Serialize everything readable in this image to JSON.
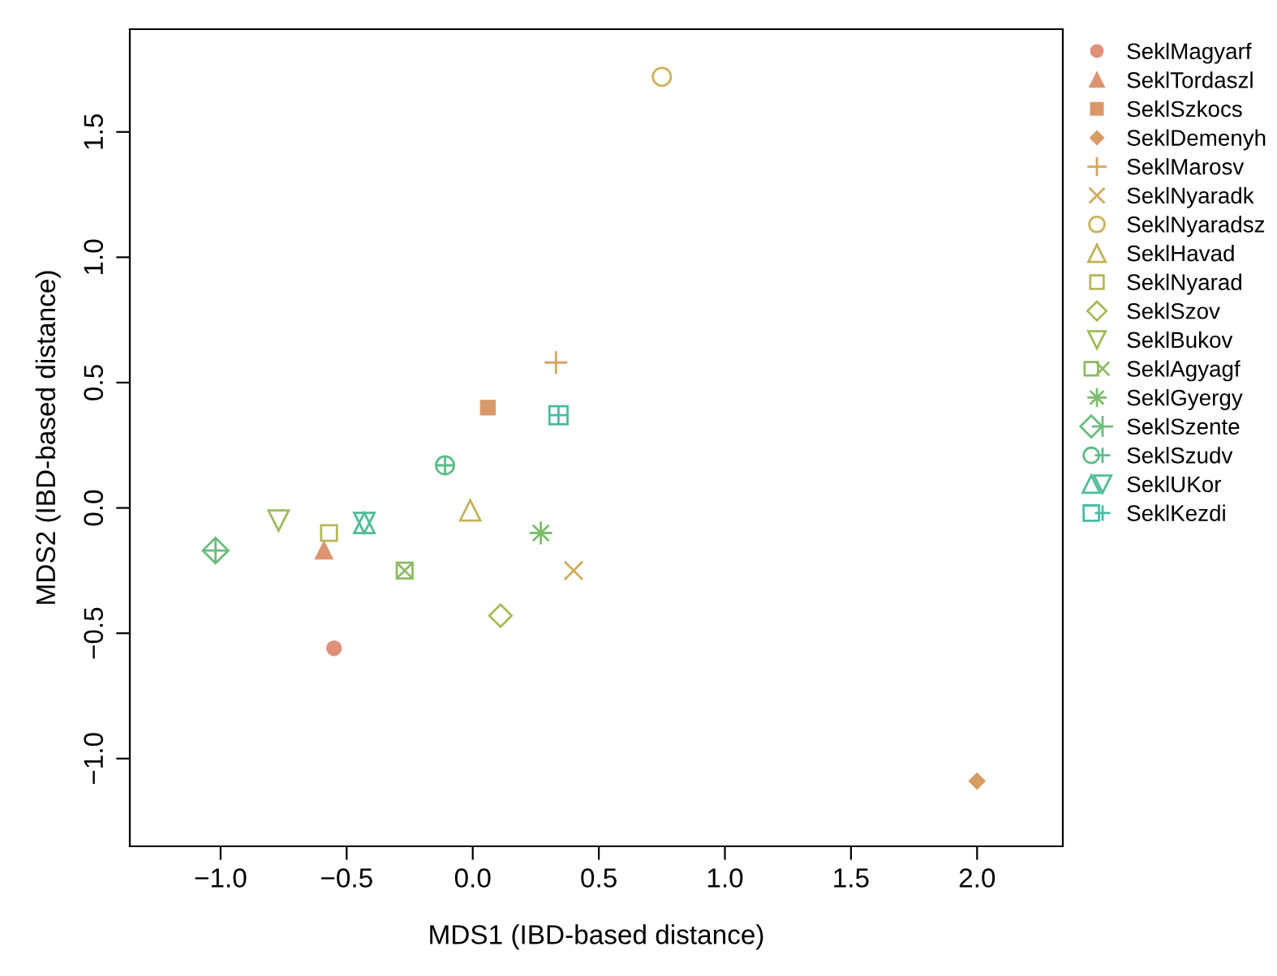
{
  "chart_data": {
    "type": "scatter",
    "xlabel": "MDS1 (IBD-based distance)",
    "ylabel": "MDS2 (IBD-based distance)",
    "xlim": [
      -1.36,
      2.34
    ],
    "ylim": [
      -1.35,
      1.91
    ],
    "xticks": [
      {
        "value": -1.0,
        "label": "−1.0"
      },
      {
        "value": -0.5,
        "label": "−0.5"
      },
      {
        "value": 0.0,
        "label": "0.0"
      },
      {
        "value": 0.5,
        "label": "0.5"
      },
      {
        "value": 1.0,
        "label": "1.0"
      },
      {
        "value": 1.5,
        "label": "1.5"
      },
      {
        "value": 2.0,
        "label": "2.0"
      }
    ],
    "yticks": [
      {
        "value": -1.0,
        "label": "−1.0"
      },
      {
        "value": -0.5,
        "label": "−0.5"
      },
      {
        "value": 0.0,
        "label": "0.0"
      },
      {
        "value": 0.5,
        "label": "0.5"
      },
      {
        "value": 1.0,
        "label": "1.0"
      },
      {
        "value": 1.5,
        "label": "1.5"
      }
    ],
    "grid": false,
    "legend": "top right",
    "series": [
      {
        "name": "SeklMagyarf",
        "color": "#e0917a",
        "marker": "circle",
        "x": [
          -0.55
        ],
        "values": [
          -0.56
        ]
      },
      {
        "name": "SeklTordaszl",
        "color": "#de9472",
        "marker": "triangle_filled",
        "x": [
          -0.59
        ],
        "values": [
          -0.17
        ]
      },
      {
        "name": "SeklSzkocs",
        "color": "#d9986a",
        "marker": "square",
        "x": [
          0.06
        ],
        "values": [
          0.4
        ]
      },
      {
        "name": "SeklDemenyh",
        "color": "#d69c62",
        "marker": "diamond",
        "x": [
          2.0
        ],
        "values": [
          -1.09
        ]
      },
      {
        "name": "SeklMarosv",
        "color": "#d6a45c",
        "marker": "plus",
        "x": [
          0.33
        ],
        "values": [
          0.58
        ]
      },
      {
        "name": "SeklNyaradk",
        "color": "#d2aa5a",
        "marker": "x",
        "x": [
          0.4
        ],
        "values": [
          -0.25
        ]
      },
      {
        "name": "SeklNyaradsz",
        "color": "#ccb25a",
        "marker": "circle_open",
        "x": [
          0.75
        ],
        "values": [
          1.72
        ]
      },
      {
        "name": "SeklHavad",
        "color": "#c2b258",
        "marker": "triangle_open",
        "x": [
          -0.01
        ],
        "values": [
          -0.01
        ]
      },
      {
        "name": "SeklNyarad",
        "color": "#b6b85a",
        "marker": "square_open",
        "x": [
          -0.57
        ],
        "values": [
          -0.1
        ]
      },
      {
        "name": "SeklSzov",
        "color": "#a8ba58",
        "marker": "diamond_open",
        "x": [
          0.11
        ],
        "values": [
          -0.43
        ]
      },
      {
        "name": "SeklBukov",
        "color": "#9cbb5a",
        "marker": "triangle_down_open",
        "x": [
          -0.77
        ],
        "values": [
          -0.05
        ]
      },
      {
        "name": "SeklAgyagf",
        "color": "#8cbb62",
        "marker": "square_x",
        "x": [
          -0.27
        ],
        "values": [
          -0.25
        ]
      },
      {
        "name": "SeklGyergy",
        "color": "#7cbc6c",
        "marker": "star",
        "x": [
          0.27
        ],
        "values": [
          -0.1
        ]
      },
      {
        "name": "SeklSzente",
        "color": "#6cbc7a",
        "marker": "cross",
        "x": [
          -1.02
        ],
        "values": [
          -0.17
        ]
      },
      {
        "name": "SeklSzudv",
        "color": "#5cbc88",
        "marker": "circle_plus",
        "x": [
          -0.11
        ],
        "values": [
          0.17
        ]
      },
      {
        "name": "SeklUKor",
        "color": "#50bc96",
        "marker": "triangle",
        "x": [
          -0.43
        ],
        "values": [
          -0.06
        ]
      },
      {
        "name": "SeklKezdi",
        "color": "#48bba4",
        "marker": "square_plus",
        "x": [
          0.34
        ],
        "values": [
          0.37
        ]
      }
    ]
  }
}
